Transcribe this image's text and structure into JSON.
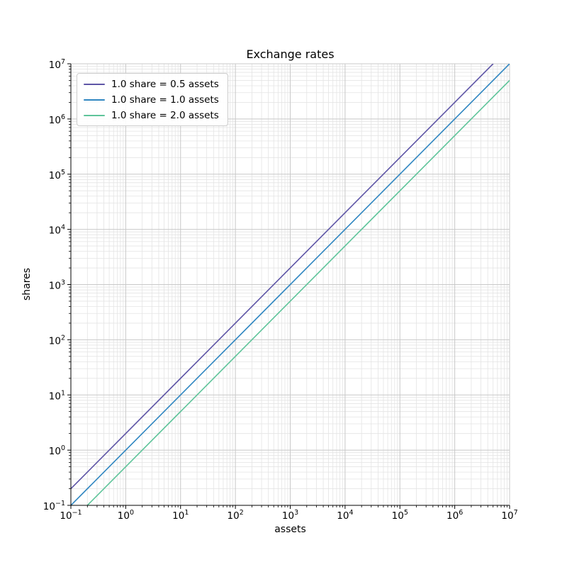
{
  "figure": {
    "title": "Exchange rates",
    "xlabel": "assets",
    "ylabel": "shares"
  },
  "legend": {
    "position": "upper left",
    "items": [
      {
        "label": "1.0 share = 0.5 assets",
        "color": "#5e55a6"
      },
      {
        "label": "1.0 share = 1.0 assets",
        "color": "#2f86c1"
      },
      {
        "label": "1.0 share = 2.0 assets",
        "color": "#5ec49a"
      }
    ]
  },
  "chart_data": {
    "type": "line",
    "title": "Exchange rates",
    "xlabel": "assets",
    "ylabel": "shares",
    "xscale": "log",
    "yscale": "log",
    "xlim": [
      0.1,
      10000000
    ],
    "ylim": [
      0.1,
      10000000
    ],
    "x_tick_exponents": [
      -1,
      0,
      1,
      2,
      3,
      4,
      5,
      6,
      7
    ],
    "y_tick_exponents": [
      -1,
      0,
      1,
      2,
      3,
      4,
      5,
      6,
      7
    ],
    "grid": {
      "major": true,
      "minor": true,
      "major_color": "#c8c8c8",
      "minor_color": "#e4e4e4"
    },
    "legend_position": "upper left",
    "series": [
      {
        "name": "1.0 share = 0.5 assets",
        "color": "#5e55a6",
        "rate_assets_per_share": 0.5,
        "endpoints": [
          [
            0.1,
            0.2
          ],
          [
            5000000,
            10000000
          ]
        ]
      },
      {
        "name": "1.0 share = 1.0 assets",
        "color": "#2f86c1",
        "rate_assets_per_share": 1.0,
        "endpoints": [
          [
            0.1,
            0.1
          ],
          [
            10000000,
            10000000
          ]
        ]
      },
      {
        "name": "1.0 share = 2.0 assets",
        "color": "#5ec49a",
        "rate_assets_per_share": 2.0,
        "endpoints": [
          [
            0.2,
            0.1
          ],
          [
            10000000,
            5000000
          ]
        ]
      }
    ]
  }
}
